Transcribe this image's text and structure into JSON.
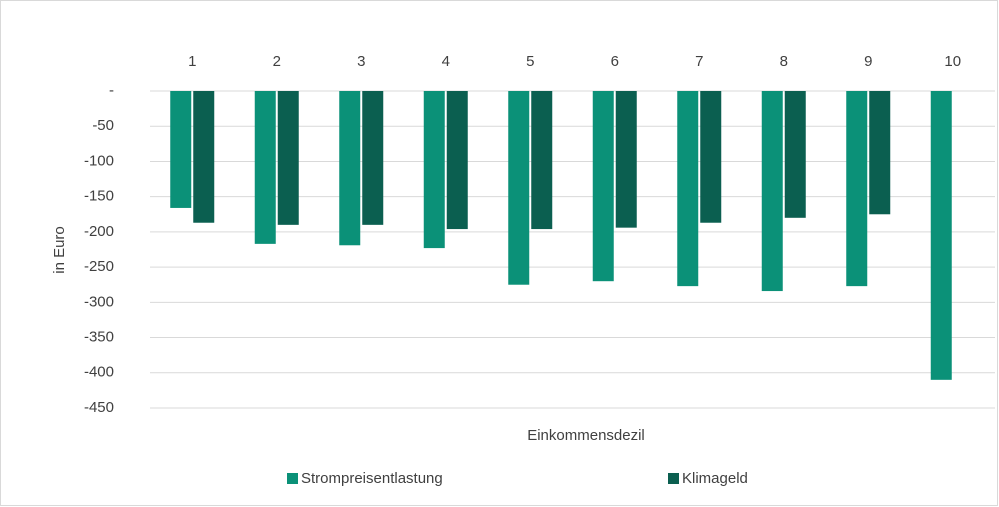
{
  "chart_data": {
    "type": "bar",
    "categories": [
      "1",
      "2",
      "3",
      "4",
      "5",
      "6",
      "7",
      "8",
      "9",
      "10"
    ],
    "series": [
      {
        "name": "Strompreisentlastung",
        "color": "#0b9178",
        "values": [
          -166,
          -217,
          -219,
          -223,
          -275,
          -270,
          -277,
          -284,
          -277,
          -410
        ]
      },
      {
        "name": "Klimageld",
        "color": "#0b5f50",
        "values": [
          -187,
          -190,
          -190,
          -196,
          -196,
          -194,
          -187,
          -180,
          -175,
          null
        ]
      }
    ],
    "ylim": [
      -450,
      0
    ],
    "yticks": [
      {
        "value": 0,
        "label": "-"
      },
      -50,
      -100,
      -150,
      -200,
      -250,
      -300,
      -350,
      -400,
      -450
    ],
    "ylabel": "in Euro",
    "xlabel": "Einkommensdezil",
    "grid": true,
    "legend": "bottom"
  }
}
